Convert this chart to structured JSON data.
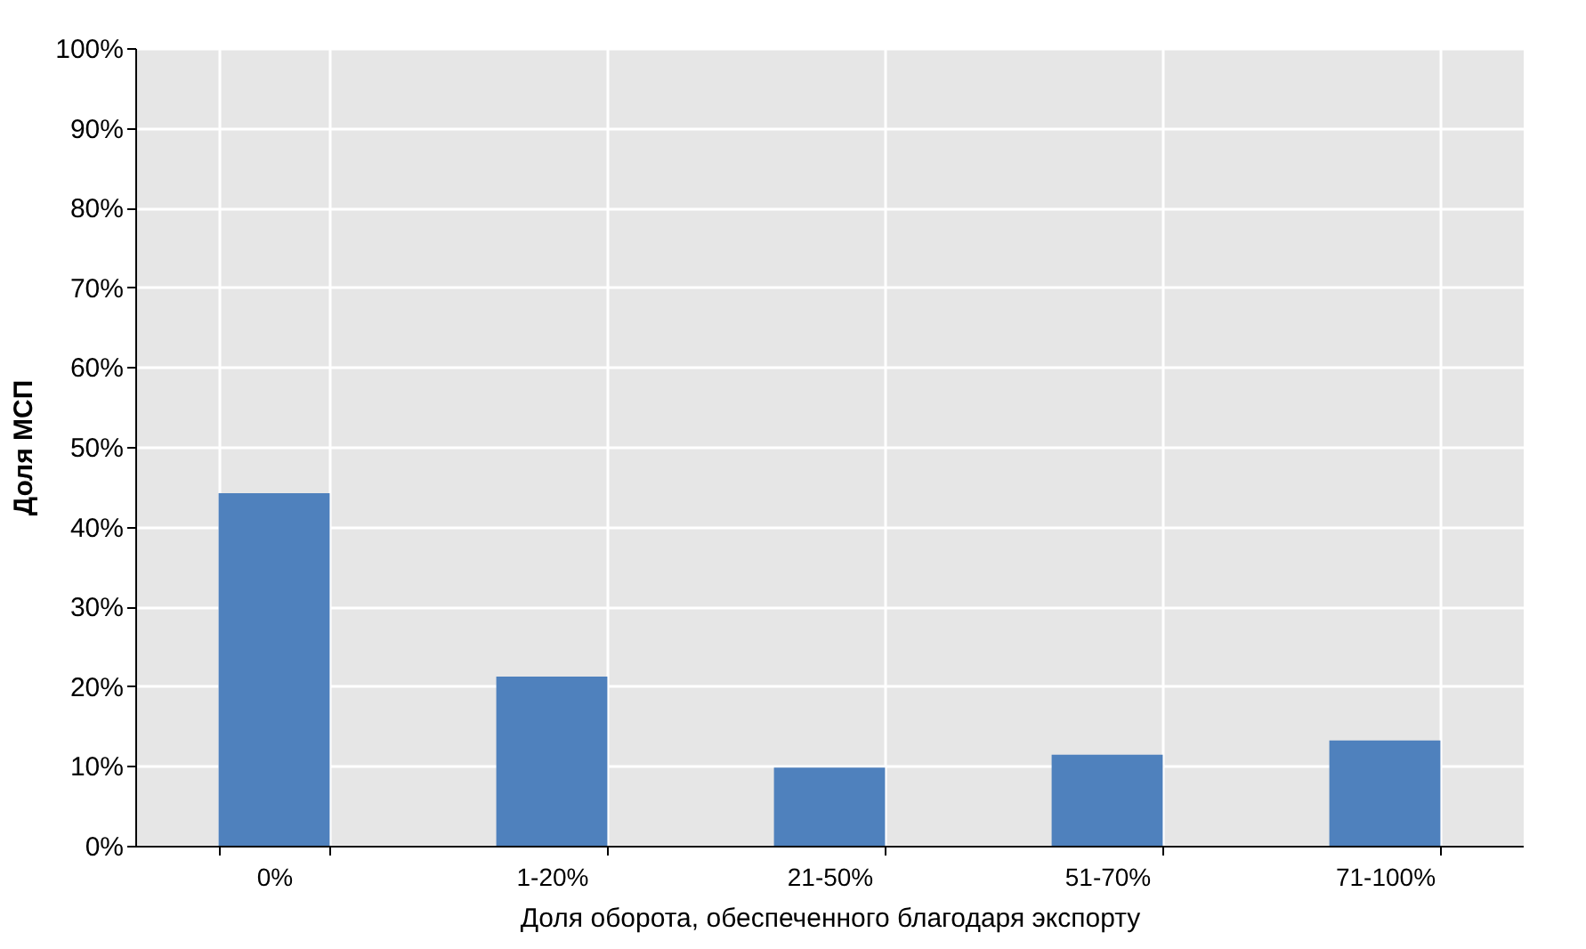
{
  "chart_data": {
    "type": "bar",
    "xlabel": "Доля оборота, обеспеченного благодаря экспорту",
    "ylabel": "Доля МСП",
    "categories": [
      "0%",
      "1-20%",
      "21-50%",
      "51-70%",
      "71-100%"
    ],
    "values": [
      44.2,
      21.2,
      9.8,
      11.4,
      13.2
    ],
    "color": "#4f81bd",
    "ylim": [
      0,
      100
    ],
    "yticks": [
      {
        "value": 0,
        "label": "0%"
      },
      {
        "value": 10,
        "label": "10%"
      },
      {
        "value": 20,
        "label": "20%"
      },
      {
        "value": 30,
        "label": "30%"
      },
      {
        "value": 40,
        "label": "40%"
      },
      {
        "value": 50,
        "label": "50%"
      },
      {
        "value": 60,
        "label": "60%"
      },
      {
        "value": 70,
        "label": "70%"
      },
      {
        "value": 80,
        "label": "80%"
      },
      {
        "value": 90,
        "label": "90%"
      },
      {
        "value": 100,
        "label": "100%"
      }
    ],
    "grid": true
  }
}
